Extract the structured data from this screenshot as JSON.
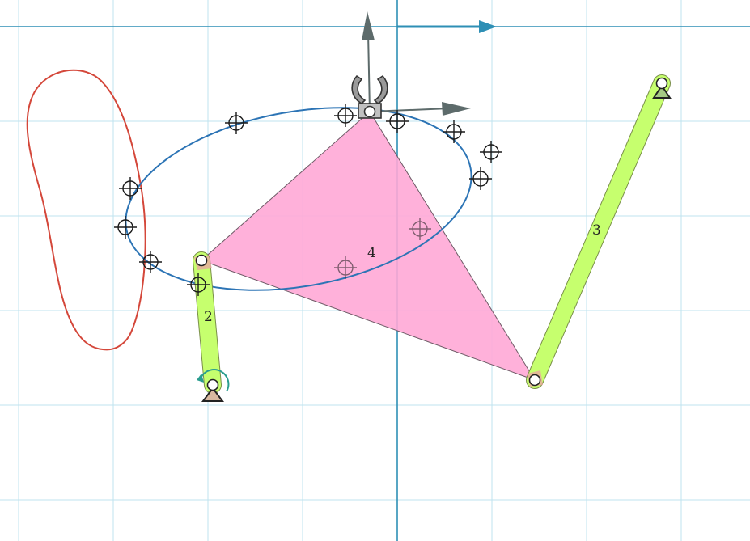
{
  "colors": {
    "grid": "#bfe3ef",
    "axis": "#2e8fb5",
    "coupler_fill": "#ffa8d6",
    "coupler_stroke": "#6e5a66",
    "link_fill": "#c6ff6e",
    "link_stroke": "#7a8f4a",
    "ellipse_path": "#2c74b5",
    "loop_path": "#d4473a",
    "frame_arrow": "#5d6b6b",
    "motor_arrow": "#2a9d8f",
    "ground": "#d8b8a0",
    "marker": "#1a1a1a"
  },
  "links": {
    "crank_label": "2",
    "rocker_label": "3",
    "coupler_label": "4"
  },
  "icons": {
    "gripper": "gripper-icon",
    "motor": "rotation-arrow-icon",
    "ground": "ground-pivot-icon",
    "target": "crosshair-target-icon"
  }
}
